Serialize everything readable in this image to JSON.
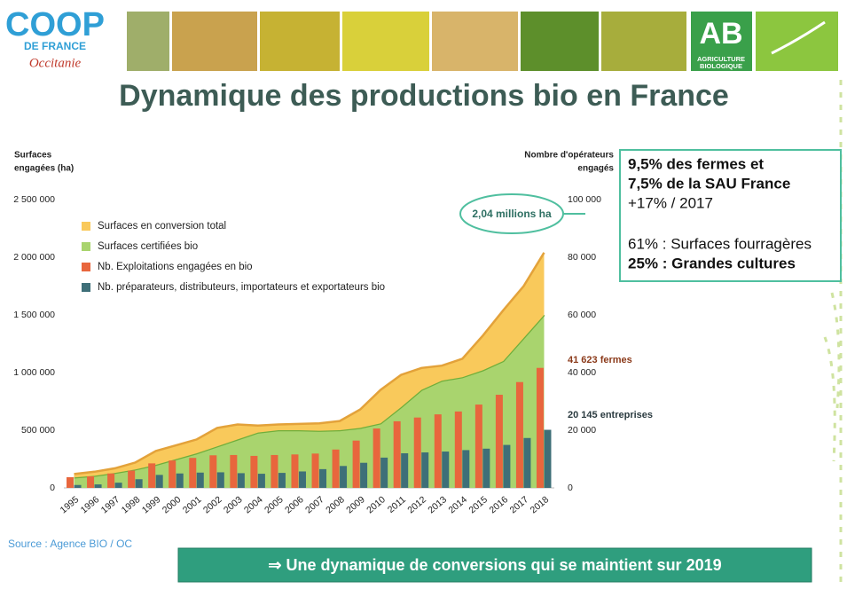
{
  "header": {
    "logo": {
      "name": "COOP",
      "sub": "DE FRANCE",
      "region": "Occitanie"
    },
    "ab_logo": {
      "letters": "AB",
      "line1": "AGRICULTURE",
      "line2": "BIOLOGIQUE"
    }
  },
  "title": "Dynamique des productions bio en France",
  "chart_data": {
    "type": "combo",
    "stacked": true,
    "grid": false,
    "legend": "top-left",
    "ylabel": [
      "Surfaces",
      "engagées (ha)"
    ],
    "y2label": [
      "Nombre d'opérateurs",
      "engagés"
    ],
    "categories": [
      "1995",
      "1996",
      "1997",
      "1998",
      "1999",
      "2000",
      "2001",
      "2002",
      "2003",
      "2004",
      "2005",
      "2006",
      "2007",
      "2008",
      "2009",
      "2010",
      "2011",
      "2012",
      "2013",
      "2014",
      "2015",
      "2016",
      "2017",
      "2018"
    ],
    "ylim": [
      0,
      2500000
    ],
    "yticks": [
      0,
      {
        "value": 500000,
        "label": "500 000"
      },
      {
        "value": 1000000,
        "label": "1 000 000"
      },
      {
        "value": 1500000,
        "label": "1 500 000"
      },
      {
        "value": 2000000,
        "label": "2 000 000"
      },
      {
        "value": 2500000,
        "label": "2 500 000"
      }
    ],
    "y2lim": [
      0,
      100000
    ],
    "y2ticks": [
      0,
      {
        "value": 20000,
        "label": "20 000"
      },
      {
        "value": 40000,
        "label": "40 000"
      },
      {
        "value": 60000,
        "label": "60 000"
      },
      {
        "value": 80000,
        "label": "80 000"
      },
      {
        "value": 100000,
        "label": "100 000"
      }
    ],
    "series": [
      {
        "name": "Surfaces en conversion total",
        "type": "area",
        "color": "#f9c95b",
        "line_color": "#e3a23a",
        "values": [
          30000,
          35000,
          40000,
          60000,
          120000,
          120000,
          120000,
          160000,
          130000,
          60000,
          50000,
          55000,
          65000,
          80000,
          160000,
          290000,
          280000,
          190000,
          130000,
          160000,
          300000,
          440000,
          450000,
          540000
        ]
      },
      {
        "name": "Surfaces certifiées bio",
        "type": "area",
        "color": "#a9d46e",
        "line_color": "#6fae3b",
        "values": [
          90000,
          105000,
          130000,
          160000,
          200000,
          250000,
          300000,
          360000,
          420000,
          480000,
          500000,
          500000,
          495000,
          500000,
          520000,
          560000,
          700000,
          850000,
          930000,
          960000,
          1020000,
          1100000,
          1300000,
          1500000
        ]
      },
      {
        "name": "Nb. Exploitations engagées en bio",
        "type": "bar",
        "axis": "y2",
        "color": "#e8663d",
        "values": [
          3700,
          4000,
          5000,
          6000,
          8500,
          9500,
          10400,
          11300,
          11400,
          11100,
          11400,
          11600,
          11900,
          13300,
          16400,
          20600,
          23100,
          24400,
          25500,
          26500,
          28900,
          32300,
          36700,
          41623
        ]
      },
      {
        "name": "Nb. préparateurs, distributeurs, importateurs et exportateurs bio",
        "type": "bar",
        "axis": "y2",
        "color": "#3e6f78",
        "values": [
          1000,
          1200,
          1800,
          3000,
          4500,
          5000,
          5300,
          5400,
          5100,
          4900,
          5200,
          5700,
          6500,
          7600,
          8700,
          10500,
          12000,
          12300,
          12600,
          13100,
          13600,
          14900,
          17300,
          20145
        ]
      }
    ],
    "annotations": [
      "2,04 millions ha",
      "41 623 fermes",
      "20 145 entreprises"
    ]
  },
  "highlights": [
    "9,5% des fermes et",
    "7,5% de la SAU France",
    "+17% / 2017",
    "61% : Surfaces fourragères",
    "25% : Grandes cultures"
  ],
  "source": "Source : Agence BIO / OC",
  "banner": "⇒ Une dynamique de conversions qui se maintient sur 2019"
}
